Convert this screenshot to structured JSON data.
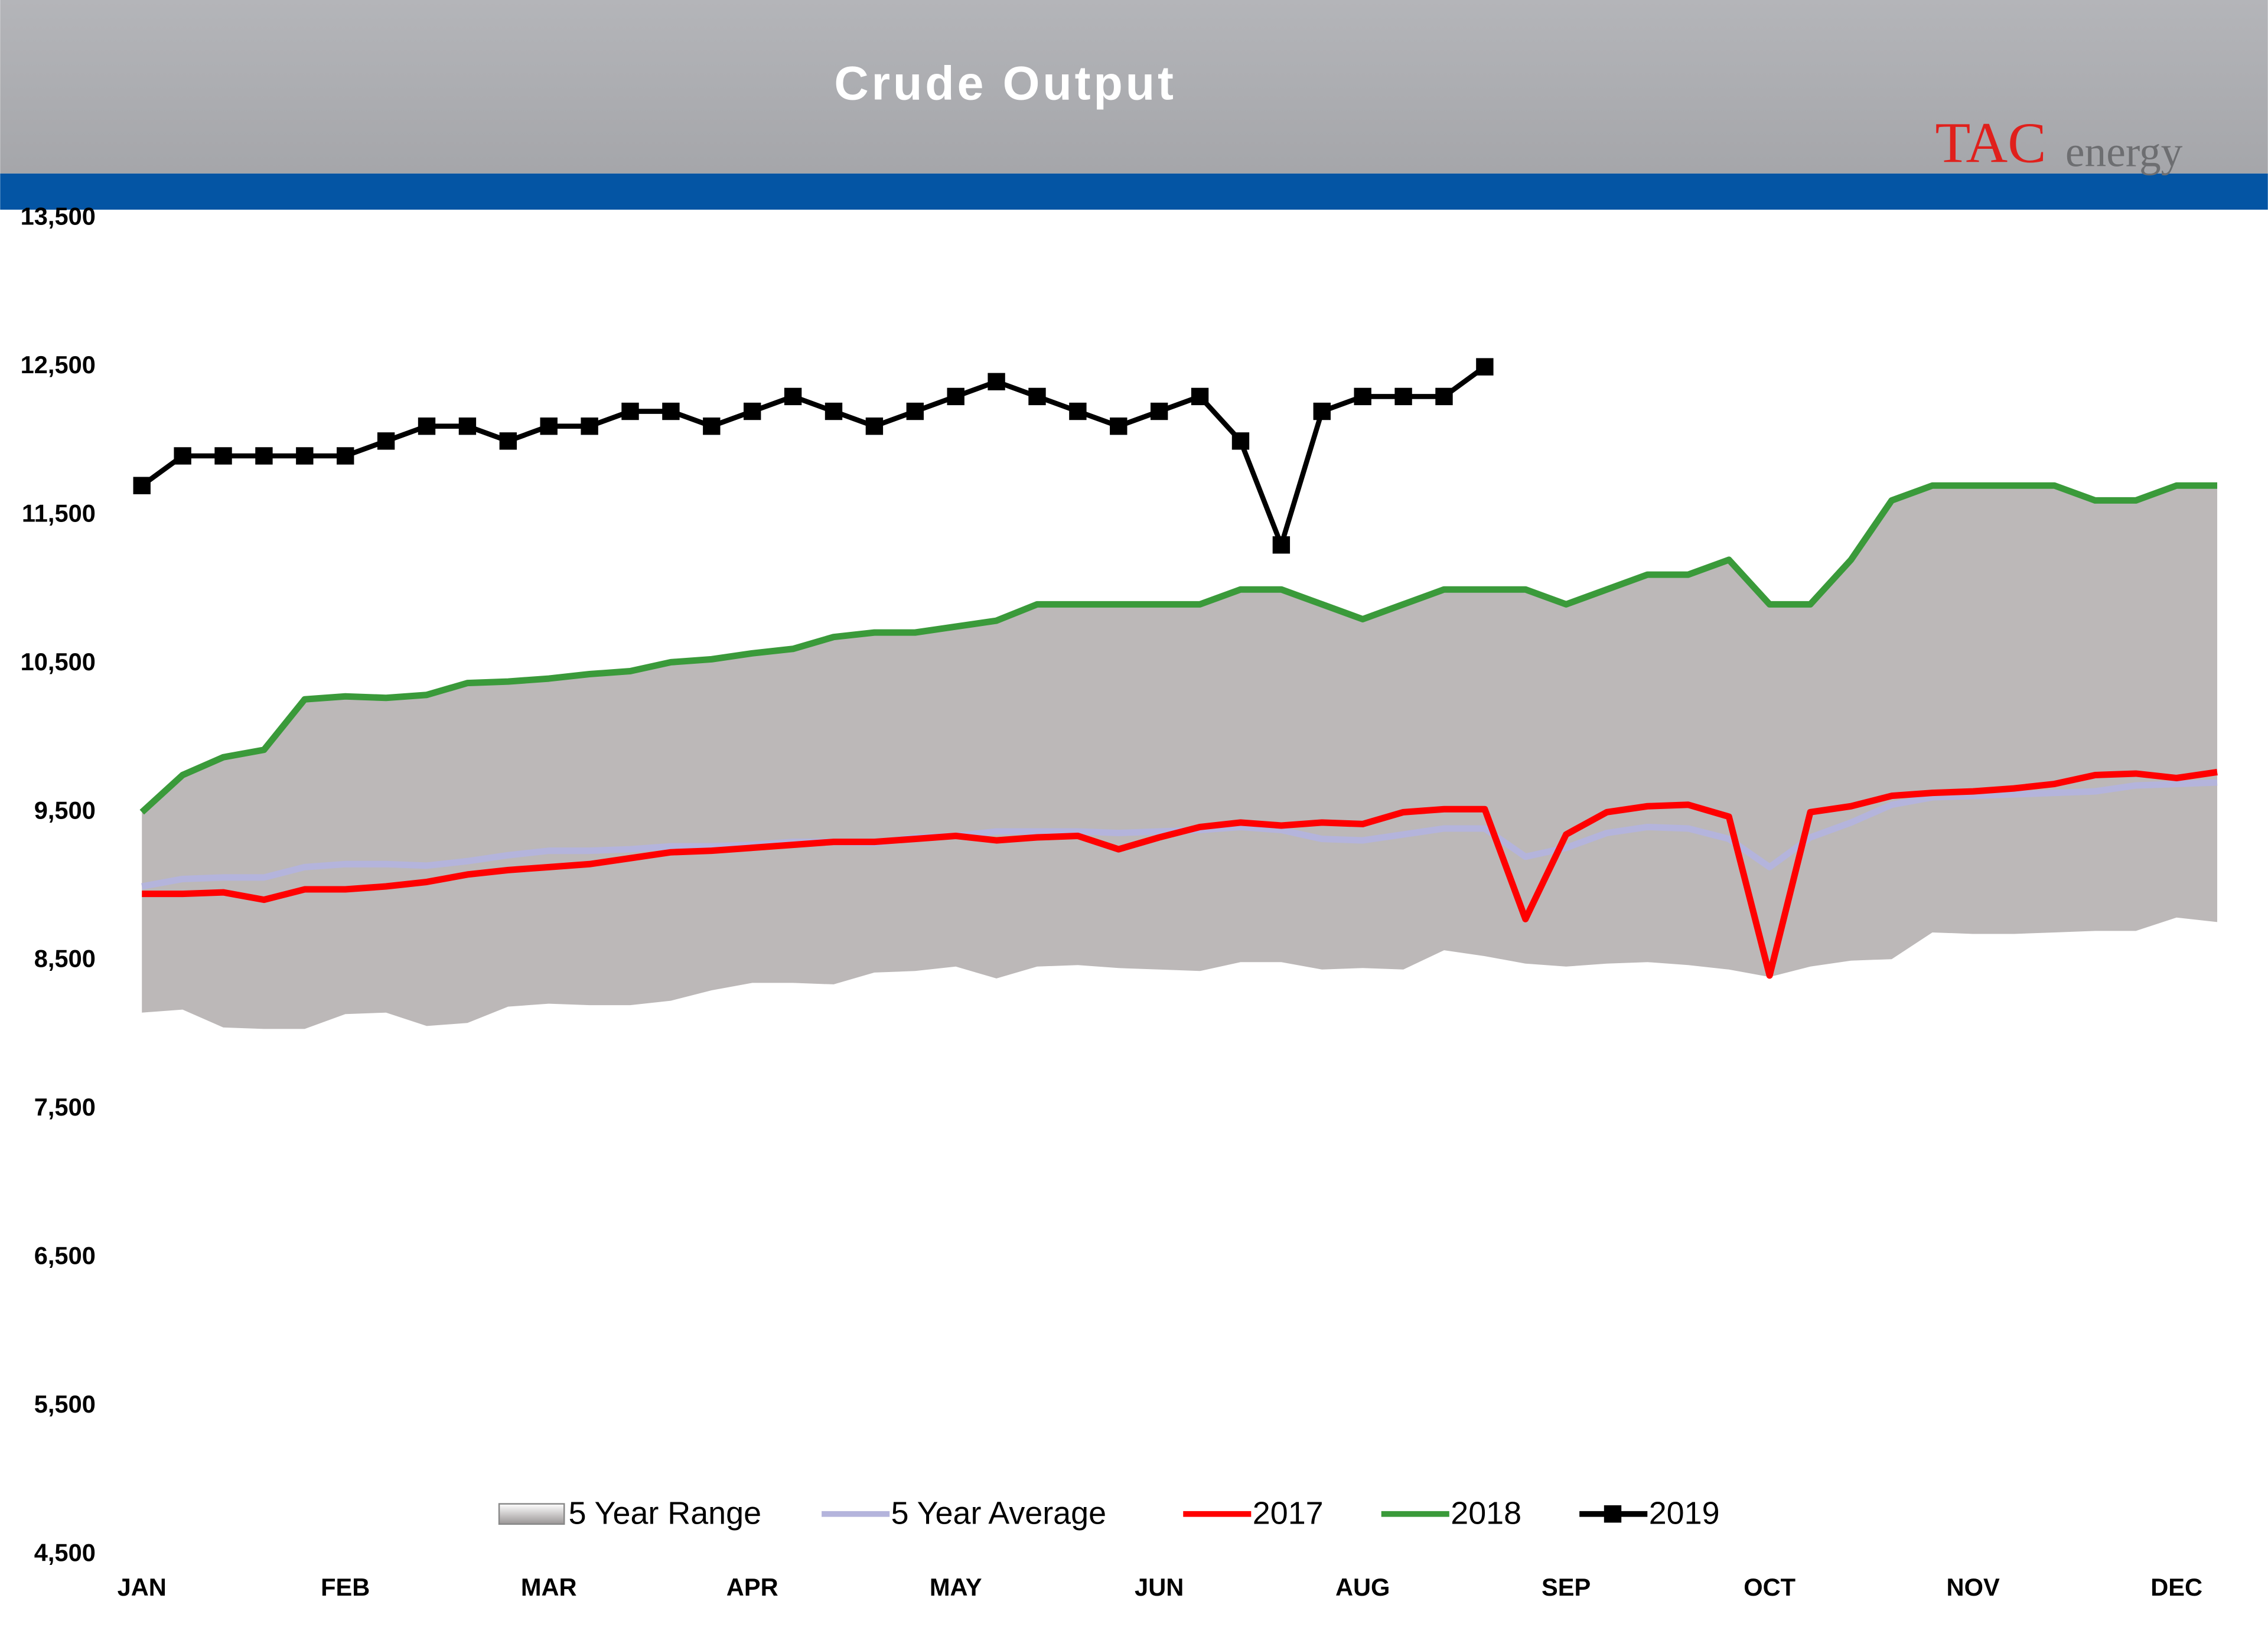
{
  "logo": {
    "mark": "TAC",
    "word": "energy"
  },
  "chart_data": {
    "type": "line",
    "title": "Crude Output",
    "categories": [
      "JAN",
      null,
      null,
      null,
      null,
      "FEB",
      null,
      null,
      null,
      null,
      "MAR",
      null,
      null,
      null,
      null,
      "APR",
      null,
      null,
      null,
      null,
      "MAY",
      null,
      null,
      null,
      null,
      "JUN",
      null,
      null,
      null,
      null,
      "AUG",
      null,
      null,
      null,
      null,
      "SEP",
      null,
      null,
      null,
      null,
      "OCT",
      null,
      null,
      null,
      null,
      "NOV",
      null,
      null,
      null,
      null,
      "DEC",
      null
    ],
    "ylim": [
      4500,
      13500
    ],
    "yticks": [
      {
        "value": 4500,
        "label": "4,500"
      },
      {
        "value": 5500,
        "label": "5,500"
      },
      {
        "value": 6500,
        "label": "6,500"
      },
      {
        "value": 7500,
        "label": "7,500"
      },
      {
        "value": 8500,
        "label": "8,500"
      },
      {
        "value": 9500,
        "label": "9,500"
      },
      {
        "value": 10500,
        "label": "10,500"
      },
      {
        "value": 11500,
        "label": "11,500"
      },
      {
        "value": 12500,
        "label": "12,500"
      },
      {
        "value": 13500,
        "label": "13,500"
      }
    ],
    "series": [
      {
        "name": "5 Year Range",
        "color": "#bcb8b8",
        "high": [
          9500,
          9750,
          9870,
          9920,
          10260,
          10280,
          10270,
          10290,
          10370,
          10380,
          10400,
          10430,
          10450,
          10510,
          10530,
          10570,
          10600,
          10680,
          10710,
          10710,
          10750,
          10790,
          10900,
          10900,
          10900,
          10900,
          10900,
          11000,
          11000,
          10900,
          10800,
          10900,
          11000,
          11000,
          11000,
          10900,
          11000,
          11100,
          11100,
          11200,
          10900,
          10900,
          11200,
          11600,
          11700,
          11700,
          11700,
          11700,
          11600,
          11600,
          11700,
          11700
        ],
        "low": [
          8150,
          8170,
          8050,
          8040,
          8040,
          8140,
          8150,
          8060,
          8080,
          8190,
          8210,
          8200,
          8200,
          8230,
          8300,
          8350,
          8350,
          8340,
          8420,
          8430,
          8460,
          8380,
          8460,
          8470,
          8450,
          8440,
          8430,
          8490,
          8490,
          8440,
          8450,
          8440,
          8570,
          8530,
          8480,
          8460,
          8480,
          8490,
          8470,
          8440,
          8390,
          8460,
          8500,
          8510,
          8690,
          8680,
          8680,
          8690,
          8700,
          8700,
          8790,
          8760
        ]
      },
      {
        "name": "5 Year Average",
        "color": "#b4b4dc",
        "values": [
          9000,
          9050,
          9060,
          9060,
          9130,
          9150,
          9150,
          9140,
          9170,
          9210,
          9240,
          9240,
          9250,
          9270,
          9270,
          9280,
          9300,
          9300,
          9290,
          9330,
          9340,
          9370,
          9370,
          9370,
          9360,
          9370,
          9380,
          9400,
          9380,
          9320,
          9310,
          9350,
          9390,
          9390,
          9200,
          9260,
          9360,
          9400,
          9390,
          9320,
          9130,
          9330,
          9430,
          9550,
          9600,
          9610,
          9620,
          9630,
          9640,
          9680,
          9690,
          9700
        ]
      },
      {
        "name": "2017",
        "color": "#ff0000",
        "values": [
          8950,
          8950,
          8960,
          8910,
          8980,
          8980,
          9000,
          9030,
          9080,
          9110,
          9130,
          9150,
          9190,
          9230,
          9240,
          9260,
          9280,
          9300,
          9300,
          9320,
          9340,
          9310,
          9330,
          9340,
          9250,
          9330,
          9400,
          9430,
          9410,
          9430,
          9420,
          9500,
          9520,
          9520,
          8780,
          9350,
          9500,
          9540,
          9550,
          9470,
          8400,
          9500,
          9540,
          9610,
          9630,
          9640,
          9660,
          9690,
          9750,
          9760,
          9730,
          9770
        ]
      },
      {
        "name": "2018",
        "color": "#3a9a3a",
        "values": [
          9500,
          9750,
          9870,
          9920,
          10260,
          10280,
          10270,
          10290,
          10370,
          10380,
          10400,
          10430,
          10450,
          10510,
          10530,
          10570,
          10600,
          10680,
          10710,
          10710,
          10750,
          10790,
          10900,
          10900,
          10900,
          10900,
          10900,
          11000,
          11000,
          10900,
          10800,
          10900,
          11000,
          11000,
          11000,
          10900,
          11000,
          11100,
          11100,
          11200,
          10900,
          10900,
          11200,
          11600,
          11700,
          11700,
          11700,
          11700,
          11600,
          11600,
          11700,
          11700
        ]
      },
      {
        "name": "2019",
        "color": "#000000",
        "marker": "square",
        "values": [
          11700,
          11900,
          11900,
          11900,
          11900,
          11900,
          12000,
          12100,
          12100,
          12000,
          12100,
          12100,
          12200,
          12200,
          12100,
          12200,
          12300,
          12200,
          12100,
          12200,
          12300,
          12400,
          12300,
          12200,
          12100,
          12200,
          12300,
          12000,
          11300,
          12200,
          12300,
          12300,
          12300,
          12500,
          null,
          null,
          null,
          null,
          null,
          null,
          null,
          null,
          null,
          null,
          null,
          null,
          null,
          null,
          null,
          null,
          null,
          null
        ]
      }
    ]
  }
}
